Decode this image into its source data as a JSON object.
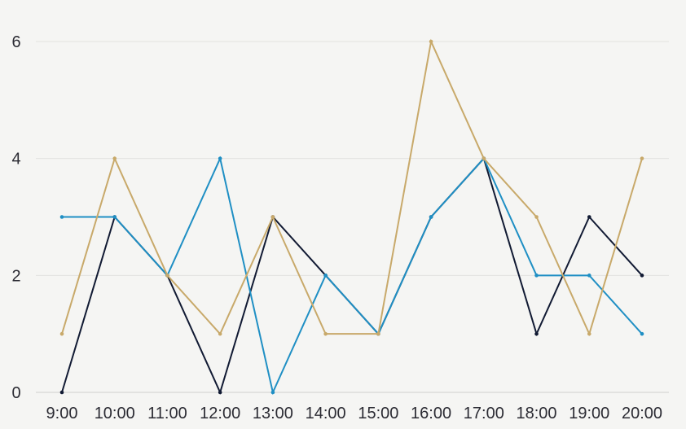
{
  "chart_data": {
    "type": "line",
    "title": "",
    "xlabel": "",
    "ylabel": "",
    "categories": [
      "9:00",
      "10:00",
      "11:00",
      "12:00",
      "13:00",
      "14:00",
      "15:00",
      "16:00",
      "17:00",
      "18:00",
      "19:00",
      "20:00"
    ],
    "yticks": [
      0,
      2,
      4,
      6
    ],
    "ylim": [
      0,
      6.4
    ],
    "grid": true,
    "legend": "none",
    "series": [
      {
        "color": "#111a33",
        "values": [
          0,
          3,
          2,
          0,
          3,
          2,
          1,
          3,
          4,
          1,
          3,
          2
        ]
      },
      {
        "color": "#1f8fc4",
        "values": [
          3,
          3,
          2,
          4,
          0,
          2,
          1,
          3,
          4,
          2,
          2,
          1
        ]
      },
      {
        "color": "#c8a96a",
        "values": [
          1,
          4,
          2,
          1,
          3,
          1,
          1,
          6,
          4,
          3,
          1,
          4
        ]
      }
    ]
  }
}
